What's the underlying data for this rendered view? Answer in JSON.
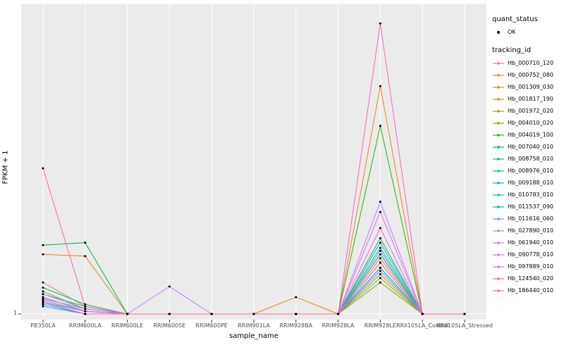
{
  "figure": {
    "background": "#FFFFFF",
    "panel_bg": "#EBEBEB",
    "grid_color": "#FFFFFF",
    "tick_color": "#333333"
  },
  "axes": {
    "x_label": "sample_name",
    "y_label": "FPKM + 1",
    "y_tick_labels": [
      "1"
    ]
  },
  "legend": {
    "quant_status_title": "quant_status",
    "quant_status_items": [
      {
        "label": "OK",
        "marker": "point",
        "color": "#000000"
      }
    ],
    "tracking_id_title": "tracking_id"
  },
  "chart_data": {
    "type": "line",
    "title": "",
    "xlabel": "sample_name",
    "ylabel": "FPKM + 1",
    "y_scale": "log",
    "ylim": [
      1,
      40000
    ],
    "y_ticks_labeled": [
      1
    ],
    "grid": "vertical-major",
    "legend_position": "right",
    "point_color": "#000000",
    "x_categories": [
      "PB350LA",
      "RRIM600LA",
      "RRIM600LE",
      "RRIM600SE",
      "RRIM600PE",
      "RRIM901LA",
      "RRIM928BA",
      "RRIM928LA",
      "RRIM928LE",
      "RRII105LA_Control",
      "RRII105LA_Stressed"
    ],
    "series": [
      {
        "name": "Hb_000710_120",
        "color": "#F8766D",
        "values": [
          3,
          1.3,
          1,
          1,
          1,
          1,
          1,
          1,
          7,
          1,
          1
        ]
      },
      {
        "name": "Hb_000752_080",
        "color": "#E88526",
        "values": [
          8,
          7.5,
          1,
          1,
          1,
          1,
          1.8,
          1,
          2800,
          1,
          1
        ]
      },
      {
        "name": "Hb_001309_030",
        "color": "#D39200",
        "values": [
          2.2,
          1.2,
          1,
          1,
          1,
          1,
          1,
          1,
          5,
          1,
          1
        ]
      },
      {
        "name": "Hb_001817_190",
        "color": "#BC9D00",
        "values": [
          1.8,
          1.1,
          1,
          1,
          1,
          1,
          1,
          1,
          4,
          1,
          1
        ]
      },
      {
        "name": "Hb_001972_020",
        "color": "#9DA700",
        "values": [
          1.5,
          1,
          1,
          1,
          1,
          1,
          1,
          1,
          3.5,
          1,
          1
        ]
      },
      {
        "name": "Hb_004010_020",
        "color": "#72B000",
        "values": [
          1.4,
          1,
          1,
          1,
          1,
          1,
          1,
          1,
          3,
          1,
          1
        ]
      },
      {
        "name": "Hb_004019_100",
        "color": "#2CB600",
        "values": [
          1.6,
          1.1,
          1,
          1,
          1,
          1,
          1,
          1,
          700,
          1,
          1
        ]
      },
      {
        "name": "Hb_007040_010",
        "color": "#00BA42",
        "values": [
          11,
          12,
          1,
          1,
          1,
          1,
          1,
          1,
          8,
          1,
          1
        ]
      },
      {
        "name": "Hb_008758_010",
        "color": "#00BD74",
        "values": [
          2.5,
          1.4,
          1,
          1,
          1,
          1,
          1,
          1,
          14,
          1,
          1
        ]
      },
      {
        "name": "Hb_008976_010",
        "color": "#00BFA0",
        "values": [
          2,
          1.3,
          1,
          1,
          1,
          1,
          1,
          1,
          12,
          1,
          1
        ]
      },
      {
        "name": "Hb_009188_010",
        "color": "#00BFC4",
        "values": [
          1.7,
          1.2,
          1,
          1,
          1,
          1,
          1,
          1,
          10,
          1,
          1
        ]
      },
      {
        "name": "Hb_010783_010",
        "color": "#00BAE2",
        "values": [
          1.5,
          1.1,
          1,
          1,
          1,
          1,
          1,
          1,
          6,
          1,
          1
        ]
      },
      {
        "name": "Hb_011537_090",
        "color": "#00B0F6",
        "values": [
          1.4,
          1,
          1,
          1,
          1,
          1,
          1,
          1,
          5,
          1,
          1
        ]
      },
      {
        "name": "Hb_011616_060",
        "color": "#619CFF",
        "values": [
          1.3,
          1,
          1,
          1,
          1,
          1,
          1,
          1,
          4.5,
          1,
          1
        ]
      },
      {
        "name": "Hb_027890_010",
        "color": "#9590FF",
        "values": [
          1.6,
          1.1,
          1,
          1,
          1,
          1,
          1,
          1,
          9,
          1,
          1
        ]
      },
      {
        "name": "Hb_061940_010",
        "color": "#C77CFF",
        "values": [
          2,
          1.2,
          1,
          2.6,
          1,
          1,
          1,
          1,
          50,
          1,
          1
        ]
      },
      {
        "name": "Hb_090778_010",
        "color": "#E26DF8",
        "values": [
          1.8,
          1.1,
          1,
          1,
          1,
          1,
          1,
          1,
          35,
          1,
          1
        ]
      },
      {
        "name": "Hb_097889_010",
        "color": "#F763E0",
        "values": [
          1.5,
          1,
          1,
          1,
          1,
          1,
          1,
          1,
          20,
          1,
          1
        ]
      },
      {
        "name": "Hb_124540_020",
        "color": "#FF62BC",
        "values": [
          1.6,
          1.1,
          1,
          1,
          1,
          1,
          1,
          1,
          25000,
          1,
          1
        ]
      },
      {
        "name": "Hb_186440_010",
        "color": "#FF6B94",
        "values": [
          160,
          1.3,
          1,
          1,
          1,
          1,
          1,
          1,
          6,
          1,
          1
        ]
      }
    ]
  }
}
